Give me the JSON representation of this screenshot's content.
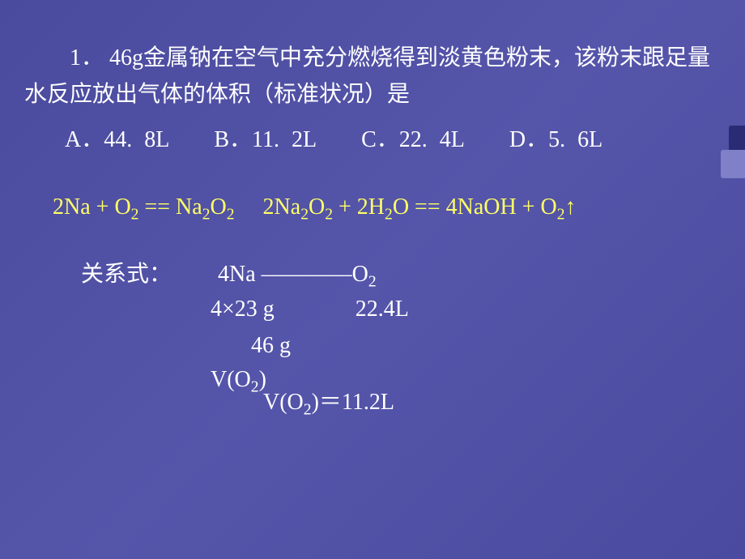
{
  "slide": {
    "background_gradient": [
      "#4a4a9e",
      "#5555aa",
      "#4a4aa0"
    ],
    "text_color": "#ffffff",
    "equation_color": "#ffff66",
    "question_number": "1．",
    "question_text": "1．  46g金属钠在空气中充分燃烧得到淡黄色粉末，该粉末跟足量水反应放出气体的体积（标准状况）是",
    "options": {
      "A": "A．44. 8L",
      "B": "B．11. 2L",
      "C": "C．22. 4L",
      "D": "D．5. 6L"
    },
    "equation1_parts": {
      "prefix": "2Na + O",
      "sub1": "2",
      "mid1": " == Na",
      "sub2": "2",
      "mid2": "O",
      "sub3": "2"
    },
    "equation2_parts": {
      "prefix": "2Na",
      "sub1": "2",
      "mid1": "O",
      "sub2": "2",
      "mid2": " + 2H",
      "sub3": "2",
      "mid3": "O == 4NaOH + O",
      "sub4": "2",
      "arrow": "↑"
    },
    "relation_label": "关系式：",
    "relation_left": "4Na",
    "relation_line": "————",
    "relation_right_prefix": "O",
    "relation_right_sub": "2",
    "calc_row1_left": "4×23 g",
    "calc_row1_right": "22.4L",
    "calc_row2_left": "46 g",
    "calc_row2_right_prefix": "V(O",
    "calc_row2_right_sub": "2",
    "calc_row2_right_suffix": ")",
    "answer_prefix": "V(O",
    "answer_sub": "2",
    "answer_suffix": ")＝11.2L",
    "accent_colors": {
      "dark": "#2b2b75",
      "light": "#8080c8"
    }
  }
}
